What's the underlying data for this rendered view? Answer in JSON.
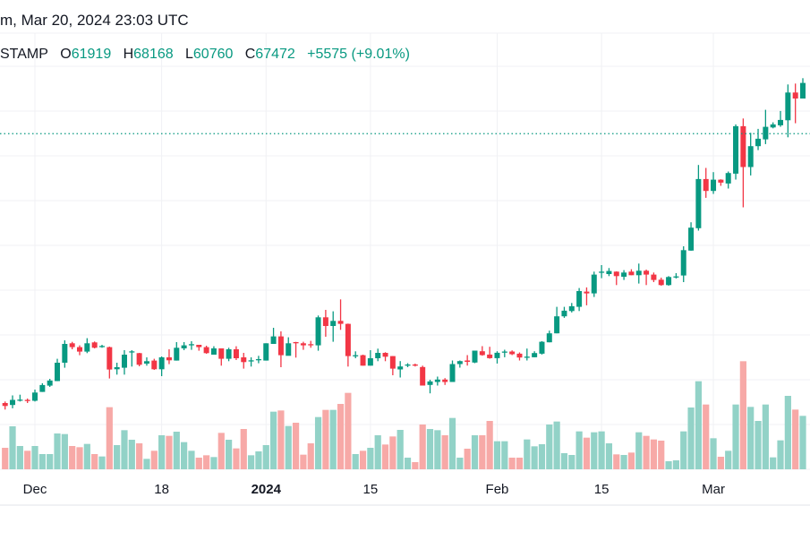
{
  "header": {
    "title_line": "m, Mar 20, 2024 23:03 UTC",
    "symbol_fragment": "STAMP",
    "open_label": "O",
    "open_value": "61919",
    "high_label": "H",
    "high_value": "68168",
    "low_label": "L",
    "low_value": "60760",
    "close_label": "C",
    "close_value": "67472",
    "change": "+5575 (+9.01%)"
  },
  "colors": {
    "up": "#089981",
    "down": "#F23645",
    "up_volume": "#92d2c7",
    "down_volume": "#f7a9a7",
    "grid": "#f0f1f4"
  },
  "chart_data": {
    "type": "candlestick",
    "title": "",
    "interval": "1D",
    "start_date": "2023-11-27",
    "x_ticks": [
      "Dec",
      "18",
      "2024",
      "15",
      "Feb",
      "15",
      "Mar"
    ],
    "x_tick_dates": [
      "2023-12-01",
      "2023-12-18",
      "2024-01-01",
      "2024-01-15",
      "2024-02-01",
      "2024-02-15",
      "2024-03-01"
    ],
    "last_price": 67472,
    "ylim": [
      35000,
      75000
    ],
    "grid": true,
    "volume_units": "relative",
    "candles_ohlcv": [
      [
        37400,
        37570,
        36670,
        37070,
        72
      ],
      [
        37180,
        38250,
        36810,
        37750,
        144
      ],
      [
        37700,
        38330,
        37570,
        37780,
        78
      ],
      [
        37750,
        37900,
        37400,
        37680,
        62
      ],
      [
        37650,
        38900,
        37570,
        38570,
        78
      ],
      [
        38640,
        39610,
        38640,
        39410,
        51
      ],
      [
        39340,
        40100,
        39200,
        39910,
        51
      ],
      [
        39850,
        42340,
        39840,
        41900,
        120
      ],
      [
        41900,
        44400,
        41340,
        44000,
        118
      ],
      [
        44070,
        44230,
        43400,
        43640,
        78
      ],
      [
        43640,
        43840,
        42740,
        43140,
        74
      ],
      [
        43140,
        44640,
        42970,
        44070,
        85
      ],
      [
        44170,
        44270,
        43500,
        43570,
        51
      ],
      [
        43700,
        43900,
        43570,
        43770,
        43
      ],
      [
        43640,
        43700,
        40140,
        41140,
        208
      ],
      [
        41170,
        41900,
        40570,
        41400,
        81
      ],
      [
        41340,
        43300,
        40570,
        42800,
        131
      ],
      [
        43100,
        43300,
        41470,
        43170,
        99
      ],
      [
        42970,
        43000,
        41500,
        41670,
        87
      ],
      [
        41800,
        42500,
        41570,
        42070,
        35
      ],
      [
        42140,
        42340,
        41100,
        41170,
        62
      ],
      [
        41170,
        42600,
        40400,
        42500,
        114
      ],
      [
        42500,
        43400,
        41740,
        42170,
        112
      ],
      [
        42140,
        44200,
        42140,
        43570,
        126
      ],
      [
        43500,
        44200,
        43300,
        43840,
        91
      ],
      [
        43940,
        44300,
        43340,
        43970,
        62
      ],
      [
        43900,
        43900,
        43240,
        43640,
        39
      ],
      [
        43640,
        43800,
        42900,
        42970,
        47
      ],
      [
        42800,
        43740,
        42800,
        43500,
        41
      ],
      [
        43500,
        43500,
        41570,
        42340,
        122
      ],
      [
        42340,
        43570,
        42070,
        43400,
        99
      ],
      [
        43400,
        43740,
        42200,
        42400,
        70
      ],
      [
        42500,
        43000,
        41240,
        41970,
        135
      ],
      [
        42100,
        42500,
        41470,
        42170,
        47
      ],
      [
        42200,
        42670,
        41840,
        42300,
        60
      ],
      [
        42140,
        44070,
        42140,
        44070,
        81
      ],
      [
        44000,
        45800,
        44000,
        44840,
        193
      ],
      [
        44840,
        45400,
        41400,
        42740,
        197
      ],
      [
        42670,
        44740,
        42700,
        44070,
        145
      ],
      [
        44200,
        44230,
        42470,
        44140,
        156
      ],
      [
        44070,
        44240,
        43340,
        43840,
        49
      ],
      [
        43970,
        44340,
        43570,
        43940,
        87
      ],
      [
        43840,
        47170,
        43240,
        46970,
        175
      ],
      [
        46970,
        47800,
        44800,
        46000,
        199
      ],
      [
        46000,
        47640,
        44240,
        46570,
        199
      ],
      [
        46570,
        48970,
        45570,
        46240,
        219
      ],
      [
        46240,
        46270,
        41470,
        42640,
        256
      ],
      [
        42700,
        43170,
        42400,
        42740,
        51
      ],
      [
        42740,
        42800,
        41570,
        41570,
        62
      ],
      [
        41570,
        43300,
        41570,
        42400,
        72
      ],
      [
        42400,
        43470,
        42070,
        43000,
        114
      ],
      [
        43000,
        43070,
        42070,
        42570,
        83
      ],
      [
        42640,
        42640,
        40500,
        41240,
        110
      ],
      [
        41150,
        42080,
        40250,
        41480,
        132
      ],
      [
        41670,
        41850,
        41400,
        41700,
        39
      ],
      [
        41700,
        41800,
        41480,
        41650,
        24
      ],
      [
        41420,
        41570,
        39350,
        39350,
        150
      ],
      [
        39420,
        40000,
        38480,
        39810,
        135
      ],
      [
        39750,
        40350,
        39350,
        40020,
        131
      ],
      [
        40020,
        40180,
        39420,
        39750,
        114
      ],
      [
        39750,
        42150,
        39750,
        41750,
        172
      ],
      [
        41750,
        42150,
        41350,
        42080,
        39
      ],
      [
        42150,
        42750,
        41580,
        42000,
        69
      ],
      [
        41920,
        43250,
        41850,
        43250,
        114
      ],
      [
        43180,
        43750,
        42680,
        42750,
        114
      ],
      [
        42810,
        43680,
        42350,
        42410,
        162
      ],
      [
        42410,
        43180,
        41810,
        43010,
        94
      ],
      [
        43120,
        43350,
        42510,
        43150,
        94
      ],
      [
        43150,
        43280,
        42750,
        42850,
        39
      ],
      [
        42910,
        43050,
        42150,
        42480,
        39
      ],
      [
        42550,
        43480,
        42150,
        42580,
        100
      ],
      [
        42510,
        43180,
        42510,
        42980,
        77
      ],
      [
        42910,
        44310,
        42810,
        44240,
        84
      ],
      [
        44180,
        45480,
        44180,
        45180,
        150
      ],
      [
        45180,
        48140,
        45180,
        47080,
        160
      ],
      [
        47080,
        48140,
        46910,
        47710,
        54
      ],
      [
        47670,
        48570,
        47510,
        48210,
        48
      ],
      [
        48140,
        50240,
        47670,
        49900,
        127
      ],
      [
        49840,
        50310,
        48310,
        49640,
        106
      ],
      [
        49640,
        52070,
        49240,
        51740,
        124
      ],
      [
        52000,
        52800,
        51340,
        52070,
        127
      ],
      [
        51800,
        52470,
        51570,
        52140,
        87
      ],
      [
        52070,
        52100,
        50570,
        51570,
        50
      ],
      [
        51500,
        52240,
        51140,
        51970,
        48
      ],
      [
        52070,
        52340,
        51670,
        51670,
        56
      ],
      [
        51670,
        52970,
        50740,
        52170,
        124
      ],
      [
        52170,
        52300,
        50570,
        51740,
        112
      ],
      [
        51740,
        51970,
        50900,
        51140,
        100
      ],
      [
        51170,
        51400,
        50500,
        50570,
        96
      ],
      [
        50570,
        51570,
        50500,
        51470,
        27
      ],
      [
        51470,
        51900,
        51300,
        51540,
        30
      ],
      [
        51640,
        54900,
        50900,
        54470,
        127
      ],
      [
        54420,
        57580,
        54400,
        56980,
        207
      ],
      [
        56920,
        63980,
        56650,
        62410,
        295
      ],
      [
        62410,
        63650,
        60310,
        61080,
        217
      ],
      [
        61080,
        63180,
        60750,
        62340,
        104
      ],
      [
        62340,
        62380,
        61650,
        62010,
        42
      ],
      [
        61910,
        63250,
        61350,
        63080,
        62
      ],
      [
        63010,
        68510,
        62350,
        68310,
        217
      ],
      [
        68310,
        69170,
        59250,
        63750,
        362
      ],
      [
        63750,
        67570,
        62810,
        66080,
        209
      ],
      [
        66080,
        68010,
        65640,
        66910,
        162
      ],
      [
        66840,
        70140,
        66310,
        68240,
        217
      ],
      [
        68170,
        68740,
        68070,
        68510,
        40
      ],
      [
        68410,
        70010,
        68240,
        69010,
        97
      ],
      [
        68970,
        72970,
        67070,
        72070,
        246
      ],
      [
        72070,
        73070,
        68640,
        71400,
        200
      ],
      [
        71400,
        73670,
        71400,
        73140,
        179
      ]
    ]
  }
}
